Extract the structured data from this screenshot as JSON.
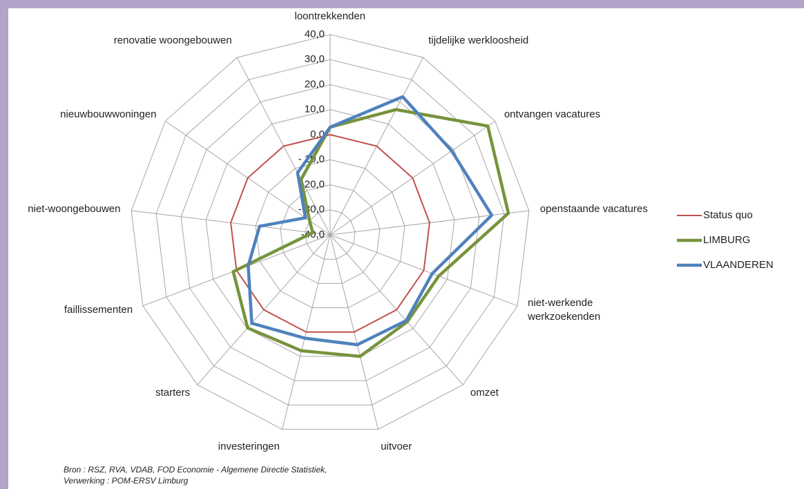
{
  "chart_data": {
    "type": "radar",
    "categories": [
      "loontrekkenden",
      "tijdelijke werkloosheid",
      "ontvangen vacatures",
      "openstaande vacatures",
      "niet-werkende werkzoekenden",
      "omzet",
      "uitvoer",
      "investeringen",
      "starters",
      "faillissementen",
      "niet-woongebouwen",
      "nieuwbouwwoningen",
      "renovatie woongebouwen"
    ],
    "series": [
      {
        "name": "Status quo",
        "color": "#c0504d",
        "width": 2,
        "values": [
          0,
          0,
          0,
          0,
          0,
          0,
          0,
          0,
          0,
          0,
          0,
          0,
          0
        ]
      },
      {
        "name": "LIMBURG",
        "color": "#77933c",
        "width": 4.5,
        "values": [
          3,
          16.5,
          36.5,
          31.7,
          6.4,
          6.4,
          10,
          7.7,
          9.7,
          1.4,
          -33,
          -30,
          -15
        ]
      },
      {
        "name": "VLAANDEREN",
        "color": "#4f81bd",
        "width": 4.5,
        "values": [
          3,
          22.3,
          19,
          25,
          3.6,
          5.8,
          5.2,
          2.5,
          7.2,
          -5,
          -11.6,
          -28,
          -12
        ]
      }
    ],
    "ylim": [
      -40,
      40
    ],
    "yticks": [
      {
        "value": -40,
        "label": "-40,0"
      },
      {
        "value": -30,
        "label": "- 30,0"
      },
      {
        "value": -20,
        "label": "- 20,0"
      },
      {
        "value": -10,
        "label": "- 10,0"
      },
      {
        "value": 0,
        "label": "0,0"
      },
      {
        "value": 10,
        "label": "10,0"
      },
      {
        "value": 20,
        "label": "20,0"
      },
      {
        "value": 30,
        "label": "30,0"
      },
      {
        "value": 40,
        "label": "40,0"
      }
    ],
    "grid": true,
    "legend": "right",
    "notes": [
      "Bron : RSZ, RVA, VDAB, FOD Economie - Algemene Directie Statistiek,",
      "Verwerking : POM-ERSV Limburg"
    ]
  }
}
